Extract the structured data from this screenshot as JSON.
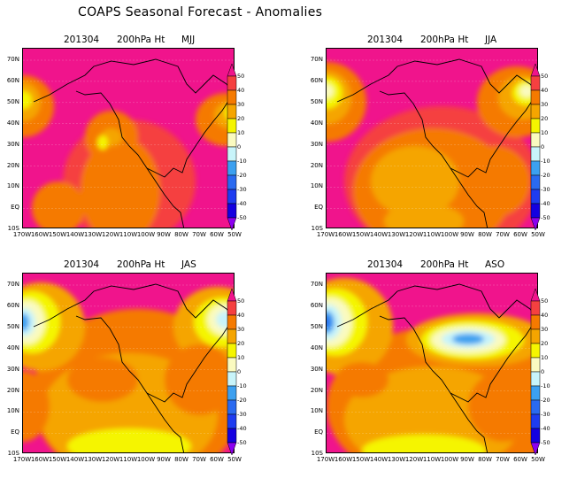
{
  "figure_title": "COAPS Seasonal Forecast - Anomalies",
  "panels": [
    {
      "date": "201304",
      "variable": "200hPa Ht",
      "season": "MJJ"
    },
    {
      "date": "201304",
      "variable": "200hPa Ht",
      "season": "JJA"
    },
    {
      "date": "201304",
      "variable": "200hPa Ht",
      "season": "JAS"
    },
    {
      "date": "201304",
      "variable": "200hPa Ht",
      "season": "ASO"
    }
  ],
  "lat_labels": [
    "70N",
    "60N",
    "50N",
    "40N",
    "30N",
    "20N",
    "10N",
    "EQ",
    "10S"
  ],
  "lon_labels": [
    "170W",
    "160W",
    "150W",
    "140W",
    "130W",
    "120W",
    "110W",
    "100W",
    "90W",
    "80W",
    "70W",
    "60W",
    "50W"
  ],
  "colorbar": {
    "labels": [
      "50",
      "40",
      "30",
      "20",
      "10",
      "0",
      "-10",
      "-20",
      "-30",
      "-40",
      "-50"
    ],
    "colors": {
      "above": "#f0148c",
      "c45": "#f54040",
      "c35": "#f57a00",
      "c25": "#f5a500",
      "c15": "#f5f500",
      "c5": "#fafac0",
      "cm5": "#c8f4fa",
      "cm15": "#3ca0f0",
      "cm25": "#2a6af0",
      "cm35": "#1e3cf0",
      "cm45": "#1400e0",
      "below": "#8c00f0"
    }
  }
}
